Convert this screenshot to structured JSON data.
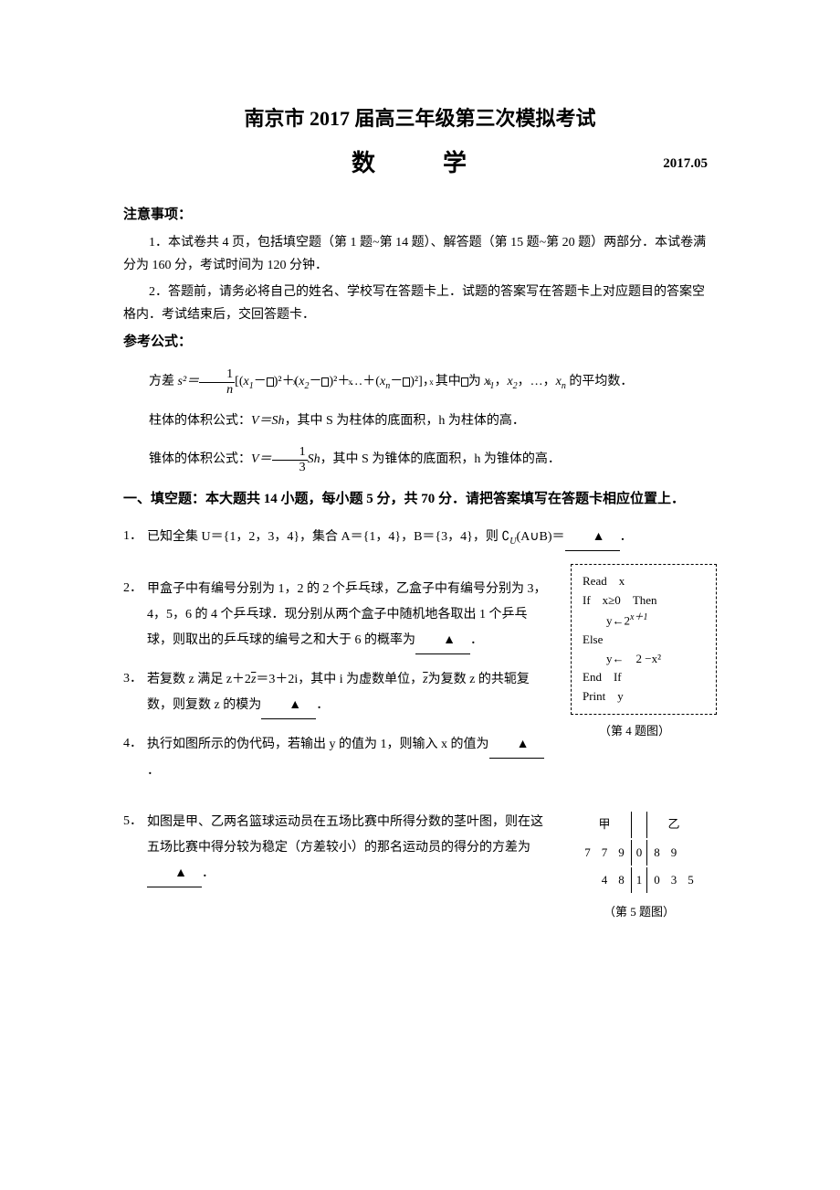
{
  "title": {
    "line1": "南京市 2017 届高三年级第三次模拟考试",
    "line2": "数　学",
    "date": "2017.05"
  },
  "notice": {
    "heading": "注意事项：",
    "p1": "1．本试卷共 4 页，包括填空题（第 1 题~第 14 题）、解答题（第 15 题~第 20 题）两部分．本试卷满分为 160 分，考试时间为 120 分钟．",
    "p2": "2．答题前，请务必将自己的姓名、学校写在答题卡上．试题的答案写在答题卡上对应题目的答案空格内．考试结束后，交回答题卡．"
  },
  "ref": {
    "heading": "参考公式：",
    "variance_prefix": "方差 ",
    "variance_bracket_open": "[(",
    "variance_mid1": "－",
    "variance_mid2": ")²＋(",
    "variance_mid3": ")²＋…＋(",
    "variance_mid4": ")²]，其中",
    "variance_tail": "为",
    "variance_tail2": "，…，",
    "variance_end": " 的平均数．",
    "x1": "x₁",
    "x2": "x₂",
    "xn": "xn",
    "prism_prefix": "柱体的体积公式：",
    "prism_formula": "V＝Sh",
    "prism_tail": "，其中 S 为柱体的底面积，h 为柱体的高．",
    "cone_prefix": "锥体的体积公式：",
    "cone_V": "V＝",
    "cone_frac_num": "1",
    "cone_frac_den": "3",
    "cone_Sh": "Sh",
    "cone_tail": "，其中 S 为锥体的底面积，h 为锥体的高．",
    "frac_num": "1",
    "frac_den": "n",
    "s2eq": "s²＝"
  },
  "sectionA": "一、填空题：本大题共 14 小题，每小题 5 分，共 70 分．请把答案填写在答题卡相应位置上．",
  "q1": {
    "num": "1．",
    "text_before": "已知全集 U＝{1，2，3，4}，集合 A＝{1，4}，B＝{3，4}，则 ∁",
    "u_sub": "U",
    "text_mid": "(A∪B)＝",
    "period": "．"
  },
  "q2": {
    "num": "2．",
    "text1": "甲盒子中有编号分别为 1，2 的 2 个乒乓球，乙盒子中有编号分别为 3，4，5，6 的 4 个乒乓球．现分别从两个盒子中随机地各取出 1 个乒乓球，则取出的乒乓球的编号之和大于 6 的概率为",
    "period": "．"
  },
  "q3": {
    "num": "3．",
    "text1": "若复数 z 满足 z＋2",
    "zbar1": "z",
    "text2": "＝3＋2i，其中 i 为虚数单位，",
    "zbar2": "z",
    "text3": "为复数 z 的共轭复数，则复数 z 的模为",
    "period": "．"
  },
  "q4": {
    "num": "4．",
    "text1": "执行如图所示的伪代码，若输出 y 的值为 1，则输入 x 的值为",
    "period": "．"
  },
  "pseudo": {
    "l1": "Read　x",
    "l2_a": "If　x",
    "l2_ge": "≥0",
    "l2_b": "　Then",
    "l3_a": "　　y←2",
    "l3_exp": "x＋1",
    "l4": "Else",
    "l5": "　　y←　2 −x²",
    "l6": "End　If",
    "l7": "Print　y",
    "caption": "（第 4 题图）"
  },
  "q5": {
    "num": "5．",
    "text1": "如图是甲、乙两名篮球运动员在五场比赛中所得分数的茎叶图，则在这五场比赛中得分较为稳定（方差较小）的那名运动员的得分的方差为",
    "period": "．"
  },
  "stemleaf": {
    "header_left": "甲",
    "header_right": "乙",
    "row1_left": [
      "7",
      "7",
      "9"
    ],
    "row1_stem": "0",
    "row1_right": [
      "8",
      "9",
      ""
    ],
    "row2_left": [
      "",
      "4",
      "8"
    ],
    "row2_stem": "1",
    "row2_right": [
      "0",
      "3",
      "5"
    ],
    "caption": "（第 5 题图）"
  },
  "blank_marker": "▲"
}
